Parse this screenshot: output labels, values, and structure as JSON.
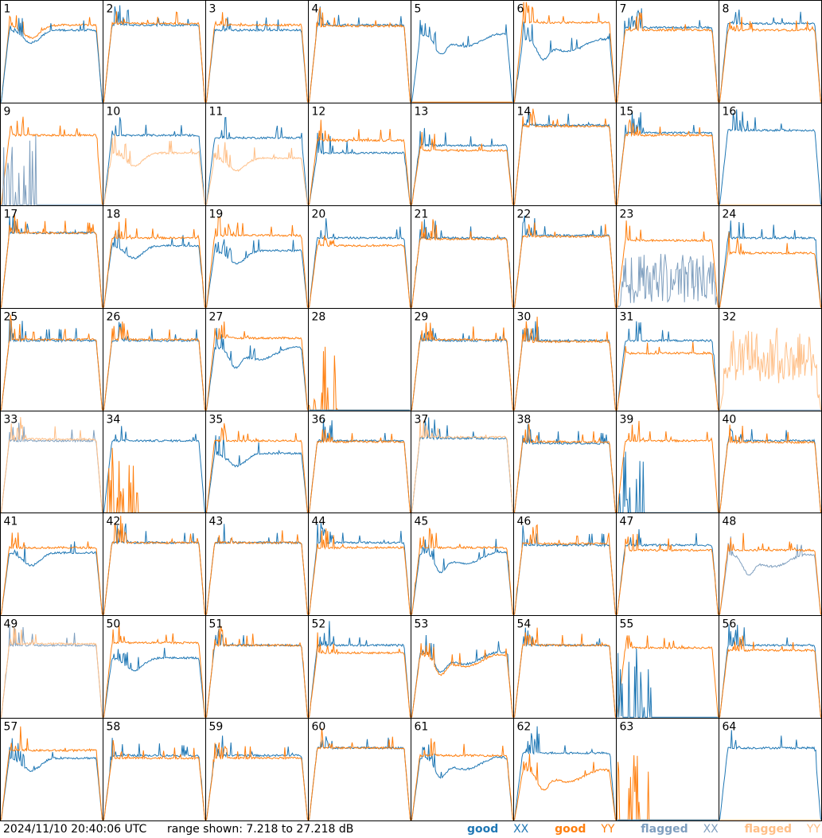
{
  "footer": {
    "timestamp": "2024/11/10 20:40:06 UTC",
    "range_text": "range shown: 7.218 to 27.218 dB"
  },
  "legend": {
    "good_xx": {
      "word": "good",
      "key": "XX"
    },
    "good_yy": {
      "word": "good",
      "key": "YY"
    },
    "flagged_xx": {
      "word": "flagged",
      "key": "XX"
    },
    "flagged_yy": {
      "word": "flagged",
      "key": "YY"
    }
  },
  "colors": {
    "good_xx": "#1f77b4",
    "good_yy": "#ff7f0e",
    "flagged_xx": "#7f9fbf",
    "flagged_yy": "#ffbf87",
    "frame": "#000000",
    "background": "#ffffff"
  },
  "chart_data": {
    "type": "line",
    "ylim": [
      7.218,
      27.218
    ],
    "yunit": "dB",
    "grid": false,
    "rows": 8,
    "cols": 8,
    "legend_placement": "bottom-right",
    "panels": [
      {
        "label": "1",
        "series": [
          {
            "status": "good_yy",
            "shape": "dip",
            "base": 22.5
          },
          {
            "status": "good_xx",
            "shape": "dip",
            "base": 21.5
          }
        ]
      },
      {
        "label": "2",
        "series": [
          {
            "status": "good_xx",
            "shape": "flat",
            "base": 22.5
          },
          {
            "status": "good_yy",
            "shape": "flat",
            "base": 22.8
          }
        ]
      },
      {
        "label": "3",
        "series": [
          {
            "status": "good_xx",
            "shape": "flat",
            "base": 21.5
          },
          {
            "status": "good_yy",
            "shape": "flat",
            "base": 22.5
          }
        ]
      },
      {
        "label": "4",
        "series": [
          {
            "status": "good_xx",
            "shape": "flat",
            "base": 22.5
          },
          {
            "status": "good_yy",
            "shape": "flat",
            "base": 22.3
          }
        ]
      },
      {
        "label": "5",
        "series": [
          {
            "status": "good_xx",
            "shape": "wave",
            "base": 19.5
          },
          {
            "status": "good_yy",
            "shape": "bottom",
            "base": 7.3
          }
        ]
      },
      {
        "label": "6",
        "series": [
          {
            "status": "good_xx",
            "shape": "wave",
            "base": 18.5
          },
          {
            "status": "good_yy",
            "shape": "flat",
            "base": 23.0
          }
        ]
      },
      {
        "label": "7",
        "series": [
          {
            "status": "good_xx",
            "shape": "flat",
            "base": 22.0
          },
          {
            "status": "good_yy",
            "shape": "flat",
            "base": 21.5
          }
        ]
      },
      {
        "label": "8",
        "series": [
          {
            "status": "good_xx",
            "shape": "flat",
            "base": 22.8
          },
          {
            "status": "good_yy",
            "shape": "flat",
            "base": 21.5
          }
        ]
      },
      {
        "label": "9",
        "series": [
          {
            "status": "good_yy",
            "shape": "flat",
            "base": 21.0
          },
          {
            "status": "flagged_xx",
            "shape": "spikes",
            "base": 7.3
          }
        ]
      },
      {
        "label": "10",
        "series": [
          {
            "status": "good_xx",
            "shape": "flat",
            "base": 21.0
          },
          {
            "status": "flagged_yy",
            "shape": "dip",
            "base": 17.5
          }
        ]
      },
      {
        "label": "11",
        "series": [
          {
            "status": "good_xx",
            "shape": "flat",
            "base": 20.5
          },
          {
            "status": "flagged_yy",
            "shape": "dip",
            "base": 16.5
          }
        ]
      },
      {
        "label": "12",
        "series": [
          {
            "status": "good_xx",
            "shape": "flat",
            "base": 17.5
          },
          {
            "status": "good_yy",
            "shape": "flat",
            "base": 20.0
          }
        ]
      },
      {
        "label": "13",
        "series": [
          {
            "status": "good_xx",
            "shape": "flat",
            "base": 19.0
          },
          {
            "status": "good_yy",
            "shape": "flat",
            "base": 18.0
          }
        ]
      },
      {
        "label": "14",
        "series": [
          {
            "status": "good_xx",
            "shape": "flat",
            "base": 23.0
          },
          {
            "status": "good_yy",
            "shape": "flat",
            "base": 22.8
          }
        ]
      },
      {
        "label": "15",
        "series": [
          {
            "status": "good_xx",
            "shape": "flat",
            "base": 21.5
          },
          {
            "status": "good_yy",
            "shape": "flat",
            "base": 21.0
          }
        ]
      },
      {
        "label": "16",
        "series": [
          {
            "status": "good_xx",
            "shape": "flat",
            "base": 22.0
          },
          {
            "status": "flagged_yy",
            "shape": "bottom",
            "base": 7.3
          }
        ]
      },
      {
        "label": "17",
        "series": [
          {
            "status": "good_xx",
            "shape": "flat",
            "base": 22.0
          },
          {
            "status": "good_yy",
            "shape": "flat",
            "base": 22.0
          }
        ]
      },
      {
        "label": "18",
        "series": [
          {
            "status": "good_xx",
            "shape": "dip",
            "base": 19.5
          },
          {
            "status": "good_yy",
            "shape": "flat",
            "base": 21.0
          }
        ]
      },
      {
        "label": "19",
        "series": [
          {
            "status": "good_xx",
            "shape": "dip",
            "base": 18.5
          },
          {
            "status": "good_yy",
            "shape": "flat",
            "base": 21.5
          }
        ]
      },
      {
        "label": "20",
        "series": [
          {
            "status": "good_xx",
            "shape": "flat",
            "base": 21.0
          },
          {
            "status": "good_yy",
            "shape": "flat",
            "base": 19.5
          }
        ]
      },
      {
        "label": "21",
        "series": [
          {
            "status": "good_xx",
            "shape": "flat",
            "base": 21.0
          },
          {
            "status": "good_yy",
            "shape": "flat",
            "base": 20.8
          }
        ]
      },
      {
        "label": "22",
        "series": [
          {
            "status": "good_xx",
            "shape": "flat",
            "base": 21.5
          },
          {
            "status": "good_yy",
            "shape": "flat",
            "base": 21.3
          }
        ]
      },
      {
        "label": "23",
        "series": [
          {
            "status": "flagged_xx",
            "shape": "noise",
            "base": 13.0
          },
          {
            "status": "good_yy",
            "shape": "flat",
            "base": 20.5
          }
        ]
      },
      {
        "label": "24",
        "series": [
          {
            "status": "good_xx",
            "shape": "flat",
            "base": 21.0
          },
          {
            "status": "good_yy",
            "shape": "flat",
            "base": 18.0
          }
        ]
      },
      {
        "label": "25",
        "series": [
          {
            "status": "good_xx",
            "shape": "flat",
            "base": 21.0
          },
          {
            "status": "good_yy",
            "shape": "flat",
            "base": 21.2
          }
        ]
      },
      {
        "label": "26",
        "series": [
          {
            "status": "good_xx",
            "shape": "flat",
            "base": 21.0
          },
          {
            "status": "good_yy",
            "shape": "flat",
            "base": 21.2
          }
        ]
      },
      {
        "label": "27",
        "series": [
          {
            "status": "good_xx",
            "shape": "wave",
            "base": 18.5
          },
          {
            "status": "good_yy",
            "shape": "flat",
            "base": 21.5
          }
        ]
      },
      {
        "label": "28",
        "series": [
          {
            "status": "good_yy",
            "shape": "spikes",
            "base": 7.3
          },
          {
            "status": "good_xx",
            "shape": "bottom",
            "base": 7.3
          }
        ]
      },
      {
        "label": "29",
        "series": [
          {
            "status": "good_xx",
            "shape": "flat",
            "base": 21.0
          },
          {
            "status": "good_yy",
            "shape": "flat",
            "base": 21.2
          }
        ]
      },
      {
        "label": "30",
        "series": [
          {
            "status": "good_xx",
            "shape": "flat",
            "base": 21.0
          },
          {
            "status": "good_yy",
            "shape": "flat",
            "base": 20.8
          }
        ]
      },
      {
        "label": "31",
        "series": [
          {
            "status": "good_xx",
            "shape": "flat",
            "base": 21.0
          },
          {
            "status": "good_yy",
            "shape": "flat",
            "base": 18.5
          }
        ]
      },
      {
        "label": "32",
        "series": [
          {
            "status": "flagged_yy",
            "shape": "noise",
            "base": 17.5
          },
          {
            "status": "flagged_xx",
            "shape": "bottom",
            "base": 7.3
          }
        ]
      },
      {
        "label": "33",
        "series": [
          {
            "status": "flagged_xx",
            "shape": "flat",
            "base": 21.5
          },
          {
            "status": "flagged_yy",
            "shape": "flat",
            "base": 21.8
          }
        ]
      },
      {
        "label": "34",
        "series": [
          {
            "status": "good_xx",
            "shape": "flat",
            "base": 21.5
          },
          {
            "status": "good_yy",
            "shape": "spikes",
            "base": 7.5
          }
        ]
      },
      {
        "label": "35",
        "series": [
          {
            "status": "good_xx",
            "shape": "dip",
            "base": 19.0
          },
          {
            "status": "good_yy",
            "shape": "flat",
            "base": 21.5
          }
        ]
      },
      {
        "label": "36",
        "series": [
          {
            "status": "good_xx",
            "shape": "flat",
            "base": 21.5
          },
          {
            "status": "good_yy",
            "shape": "flat",
            "base": 21.3
          }
        ]
      },
      {
        "label": "37",
        "series": [
          {
            "status": "good_xx",
            "shape": "flat",
            "base": 22.0
          },
          {
            "status": "flagged_yy",
            "shape": "flat",
            "base": 22.2
          }
        ]
      },
      {
        "label": "38",
        "series": [
          {
            "status": "good_xx",
            "shape": "flat",
            "base": 21.0
          },
          {
            "status": "good_yy",
            "shape": "flat",
            "base": 21.3
          }
        ]
      },
      {
        "label": "39",
        "series": [
          {
            "status": "good_yy",
            "shape": "flat",
            "base": 21.5
          },
          {
            "status": "good_xx",
            "shape": "spikes",
            "base": 7.3
          }
        ]
      },
      {
        "label": "40",
        "series": [
          {
            "status": "good_xx",
            "shape": "flat",
            "base": 21.5
          },
          {
            "status": "good_yy",
            "shape": "flat",
            "base": 21.2
          }
        ]
      },
      {
        "label": "41",
        "series": [
          {
            "status": "good_xx",
            "shape": "dip",
            "base": 19.5
          },
          {
            "status": "good_yy",
            "shape": "flat",
            "base": 20.5
          }
        ]
      },
      {
        "label": "42",
        "series": [
          {
            "status": "good_xx",
            "shape": "flat",
            "base": 21.5
          },
          {
            "status": "good_yy",
            "shape": "flat",
            "base": 21.5
          }
        ]
      },
      {
        "label": "43",
        "series": [
          {
            "status": "good_xx",
            "shape": "flat",
            "base": 21.5
          },
          {
            "status": "good_yy",
            "shape": "flat",
            "base": 21.5
          }
        ]
      },
      {
        "label": "44",
        "series": [
          {
            "status": "good_xx",
            "shape": "flat",
            "base": 21.5
          },
          {
            "status": "good_yy",
            "shape": "flat",
            "base": 20.5
          }
        ]
      },
      {
        "label": "45",
        "series": [
          {
            "status": "good_xx",
            "shape": "wave",
            "base": 18.5
          },
          {
            "status": "good_yy",
            "shape": "flat",
            "base": 20.5
          }
        ]
      },
      {
        "label": "46",
        "series": [
          {
            "status": "good_xx",
            "shape": "flat",
            "base": 21.0
          },
          {
            "status": "good_yy",
            "shape": "flat",
            "base": 21.3
          }
        ]
      },
      {
        "label": "47",
        "series": [
          {
            "status": "good_xx",
            "shape": "flat",
            "base": 21.0
          },
          {
            "status": "good_yy",
            "shape": "flat",
            "base": 20.0
          }
        ]
      },
      {
        "label": "48",
        "series": [
          {
            "status": "flagged_xx",
            "shape": "wave",
            "base": 18.0
          },
          {
            "status": "good_yy",
            "shape": "flat",
            "base": 20.0
          }
        ]
      },
      {
        "label": "49",
        "series": [
          {
            "status": "flagged_xx",
            "shape": "flat",
            "base": 21.5
          },
          {
            "status": "flagged_yy",
            "shape": "flat",
            "base": 21.8
          }
        ]
      },
      {
        "label": "50",
        "series": [
          {
            "status": "good_xx",
            "shape": "dip",
            "base": 19.0
          },
          {
            "status": "good_yy",
            "shape": "flat",
            "base": 22.0
          }
        ]
      },
      {
        "label": "51",
        "series": [
          {
            "status": "good_xx",
            "shape": "flat",
            "base": 21.5
          },
          {
            "status": "good_yy",
            "shape": "flat",
            "base": 21.5
          }
        ]
      },
      {
        "label": "52",
        "series": [
          {
            "status": "good_xx",
            "shape": "flat",
            "base": 21.5
          },
          {
            "status": "good_yy",
            "shape": "flat",
            "base": 20.0
          }
        ]
      },
      {
        "label": "53",
        "series": [
          {
            "status": "good_xx",
            "shape": "wave",
            "base": 19.0
          },
          {
            "status": "good_yy",
            "shape": "wave",
            "base": 18.5
          }
        ]
      },
      {
        "label": "54",
        "series": [
          {
            "status": "good_xx",
            "shape": "flat",
            "base": 21.5
          },
          {
            "status": "good_yy",
            "shape": "flat",
            "base": 21.5
          }
        ]
      },
      {
        "label": "55",
        "series": [
          {
            "status": "good_yy",
            "shape": "flat",
            "base": 21.0
          },
          {
            "status": "good_xx",
            "shape": "spikes",
            "base": 7.3
          }
        ]
      },
      {
        "label": "56",
        "series": [
          {
            "status": "good_xx",
            "shape": "flat",
            "base": 21.5
          },
          {
            "status": "good_yy",
            "shape": "flat",
            "base": 20.5
          }
        ]
      },
      {
        "label": "57",
        "series": [
          {
            "status": "good_xx",
            "shape": "dip",
            "base": 19.5
          },
          {
            "status": "good_yy",
            "shape": "flat",
            "base": 21.0
          }
        ]
      },
      {
        "label": "58",
        "series": [
          {
            "status": "good_xx",
            "shape": "flat",
            "base": 20.0
          },
          {
            "status": "good_yy",
            "shape": "flat",
            "base": 19.5
          }
        ]
      },
      {
        "label": "59",
        "series": [
          {
            "status": "good_xx",
            "shape": "flat",
            "base": 20.0
          },
          {
            "status": "good_yy",
            "shape": "flat",
            "base": 19.5
          }
        ]
      },
      {
        "label": "60",
        "series": [
          {
            "status": "good_xx",
            "shape": "flat",
            "base": 21.5
          },
          {
            "status": "good_yy",
            "shape": "flat",
            "base": 21.5
          }
        ]
      },
      {
        "label": "61",
        "series": [
          {
            "status": "good_xx",
            "shape": "wave",
            "base": 18.5
          },
          {
            "status": "good_yy",
            "shape": "flat",
            "base": 20.0
          }
        ]
      },
      {
        "label": "62",
        "series": [
          {
            "status": "good_xx",
            "shape": "flat",
            "base": 20.5
          },
          {
            "status": "good_yy",
            "shape": "wave",
            "base": 16.0
          }
        ]
      },
      {
        "label": "63",
        "series": [
          {
            "status": "good_yy",
            "shape": "spikes",
            "base": 7.3
          },
          {
            "status": "good_xx",
            "shape": "bottom",
            "base": 7.3
          }
        ]
      },
      {
        "label": "64",
        "series": [
          {
            "status": "good_xx",
            "shape": "flat",
            "base": 21.5
          },
          {
            "status": "flagged_yy",
            "shape": "bottom",
            "base": 7.3
          }
        ]
      }
    ]
  }
}
